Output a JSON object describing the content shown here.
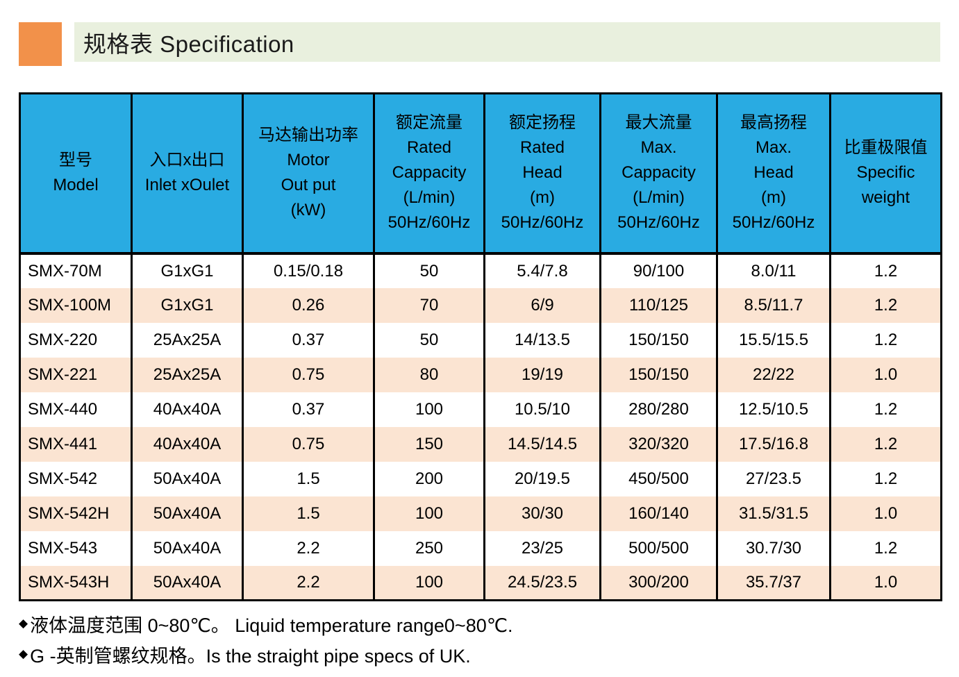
{
  "title": {
    "text": "规格表 Specification"
  },
  "colors": {
    "accent_orange": "#f2914a",
    "title_bar_green": "#e9f0de",
    "header_blue": "#29abe2",
    "row_peach": "#fbe4d2",
    "row_white": "#ffffff",
    "border_black": "#000000"
  },
  "table": {
    "columns": [
      {
        "name": "model",
        "lines": [
          "型号",
          "Model"
        ]
      },
      {
        "name": "inlet-outlet",
        "lines": [
          "入口x出口",
          "Inlet xOulet"
        ]
      },
      {
        "name": "motor-output",
        "lines": [
          "马达输出功率",
          "Motor",
          "Out put",
          "(kW)"
        ]
      },
      {
        "name": "rated-capacity",
        "lines": [
          "额定流量",
          "Rated",
          "Cappacity",
          "(L/min)",
          "50Hz/60Hz"
        ]
      },
      {
        "name": "rated-head",
        "lines": [
          "额定扬程",
          "Rated",
          "Head",
          "(m)",
          "50Hz/60Hz"
        ]
      },
      {
        "name": "max-capacity",
        "lines": [
          "最大流量",
          "Max.",
          "Cappacity",
          "(L/min)",
          "50Hz/60Hz"
        ]
      },
      {
        "name": "max-head",
        "lines": [
          "最高扬程",
          "Max.",
          "Head",
          "(m)",
          "50Hz/60Hz"
        ]
      },
      {
        "name": "specific-weight",
        "lines": [
          "比重极限值",
          "Specific",
          "weight"
        ]
      }
    ],
    "rows": [
      [
        "SMX-70M",
        "G1xG1",
        "0.15/0.18",
        "50",
        "5.4/7.8",
        "90/100",
        "8.0/11",
        "1.2"
      ],
      [
        "SMX-100M",
        "G1xG1",
        "0.26",
        "70",
        "6/9",
        "110/125",
        "8.5/11.7",
        "1.2"
      ],
      [
        "SMX-220",
        "25Ax25A",
        "0.37",
        "50",
        "14/13.5",
        "150/150",
        "15.5/15.5",
        "1.2"
      ],
      [
        "SMX-221",
        "25Ax25A",
        "0.75",
        "80",
        "19/19",
        "150/150",
        "22/22",
        "1.0"
      ],
      [
        "SMX-440",
        "40Ax40A",
        "0.37",
        "100",
        "10.5/10",
        "280/280",
        "12.5/10.5",
        "1.2"
      ],
      [
        "SMX-441",
        "40Ax40A",
        "0.75",
        "150",
        "14.5/14.5",
        "320/320",
        "17.5/16.8",
        "1.2"
      ],
      [
        "SMX-542",
        "50Ax40A",
        "1.5",
        "200",
        "20/19.5",
        "450/500",
        "27/23.5",
        "1.2"
      ],
      [
        "SMX-542H",
        "50Ax40A",
        "1.5",
        "100",
        "30/30",
        "160/140",
        "31.5/31.5",
        "1.0"
      ],
      [
        "SMX-543",
        "50Ax40A",
        "2.2",
        "250",
        "23/25",
        "500/500",
        "30.7/30",
        "1.2"
      ],
      [
        "SMX-543H",
        "50Ax40A",
        "2.2",
        "100",
        "24.5/23.5",
        "300/200",
        "35.7/37",
        "1.0"
      ]
    ]
  },
  "notes": [
    {
      "bullet": "◆",
      "text": "液体温度范围 0~80℃。 Liquid temperature range0~80℃."
    },
    {
      "bullet": "◆",
      "text": "G -英制管螺纹规格。Is the straight pipe specs of UK."
    }
  ]
}
